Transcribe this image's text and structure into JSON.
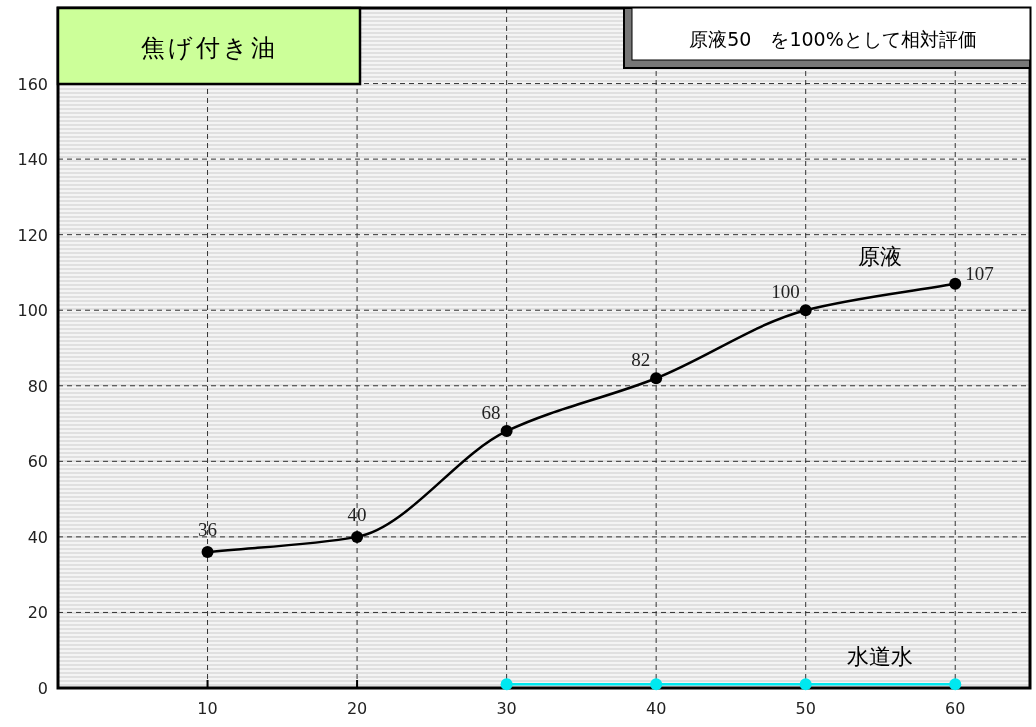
{
  "chart_data": {
    "type": "line",
    "title": "焦げ付き油",
    "annotations": [
      "原液50　を100%として相対評価"
    ],
    "series": [
      {
        "name": "原液",
        "color": "#000000",
        "x": [
          10,
          20,
          30,
          40,
          50,
          60
        ],
        "values": [
          36,
          40,
          68,
          82,
          100,
          107
        ],
        "data_labels": true
      },
      {
        "name": "水道水",
        "color": "#00e8f0",
        "x": [
          30,
          40,
          50,
          60
        ],
        "values": [
          1,
          1,
          1,
          1
        ]
      }
    ],
    "xlim": [
      0,
      65
    ],
    "xticks": [
      10,
      20,
      30,
      40,
      50,
      60
    ],
    "ylim": [
      0,
      180
    ],
    "yticks": [
      0,
      20,
      40,
      60,
      80,
      100,
      120,
      140,
      160
    ],
    "grid": true,
    "marker": "circle",
    "line_style": "solid"
  }
}
